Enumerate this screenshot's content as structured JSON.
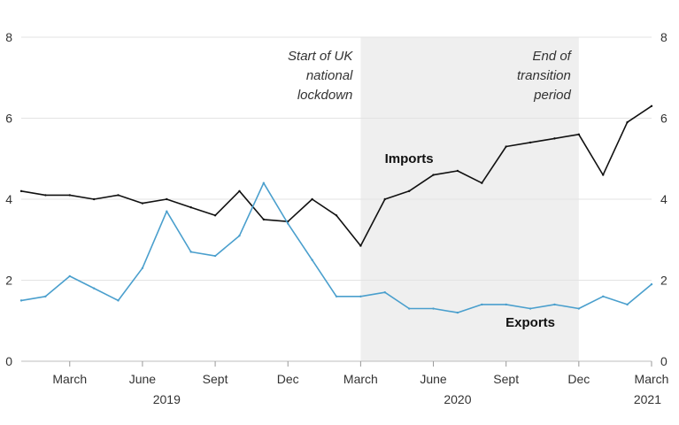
{
  "chart_data": {
    "type": "line",
    "x": [
      "2019-01",
      "2019-02",
      "2019-03",
      "2019-04",
      "2019-05",
      "2019-06",
      "2019-07",
      "2019-08",
      "2019-09",
      "2019-10",
      "2019-11",
      "2019-12",
      "2020-01",
      "2020-02",
      "2020-03",
      "2020-04",
      "2020-05",
      "2020-06",
      "2020-07",
      "2020-08",
      "2020-09",
      "2020-10",
      "2020-11",
      "2020-12",
      "2021-01",
      "2021-02",
      "2021-03"
    ],
    "series": [
      {
        "name": "Imports",
        "color": "#111111",
        "values": [
          4.2,
          4.1,
          4.1,
          4.0,
          4.1,
          3.9,
          4.0,
          3.8,
          3.6,
          4.2,
          3.5,
          3.45,
          4.0,
          3.6,
          2.85,
          4.0,
          4.2,
          4.6,
          4.7,
          4.4,
          5.3,
          5.4,
          5.5,
          5.6,
          4.6,
          5.9,
          6.3
        ]
      },
      {
        "name": "Exports",
        "color": "#4a9fcd",
        "values": [
          1.5,
          1.6,
          2.1,
          1.8,
          1.5,
          2.3,
          3.7,
          2.7,
          2.6,
          3.1,
          4.4,
          3.4,
          2.5,
          1.6,
          1.6,
          1.7,
          1.3,
          1.3,
          1.2,
          1.4,
          1.4,
          1.3,
          1.4,
          1.3,
          1.6,
          1.4,
          1.9
        ]
      }
    ],
    "ylim": [
      0,
      8
    ],
    "yticks": [
      "0",
      "2",
      "4",
      "6",
      "8"
    ],
    "x_tick_labels": [
      {
        "label": "March",
        "x": "2019-03"
      },
      {
        "label": "June",
        "x": "2019-06"
      },
      {
        "label": "Sept",
        "x": "2019-09"
      },
      {
        "label": "Dec",
        "x": "2019-12"
      },
      {
        "label": "March",
        "x": "2020-03"
      },
      {
        "label": "June",
        "x": "2020-06"
      },
      {
        "label": "Sept",
        "x": "2020-09"
      },
      {
        "label": "Dec",
        "x": "2020-12"
      },
      {
        "label": "March",
        "x": "2021-03"
      }
    ],
    "year_labels": [
      {
        "label": "2019",
        "x": "2019-07"
      },
      {
        "label": "2020",
        "x": "2020-07"
      },
      {
        "label": "2021",
        "x": "2021-03"
      }
    ],
    "shaded_region": {
      "from": "2020-03",
      "to": "2020-12",
      "color": "#efefef"
    },
    "annotations": [
      {
        "lines": [
          "Start of UK",
          "national",
          "lockdown"
        ],
        "x": "2020-03"
      },
      {
        "lines": [
          "End of",
          "transition",
          "period"
        ],
        "x": "2020-12"
      }
    ],
    "series_labels": [
      {
        "text": "Imports",
        "x": "2020-05",
        "y": 4.9
      },
      {
        "text": "Exports",
        "x": "2020-10",
        "y": 0.85
      }
    ],
    "grid": true,
    "legend": "inline"
  }
}
